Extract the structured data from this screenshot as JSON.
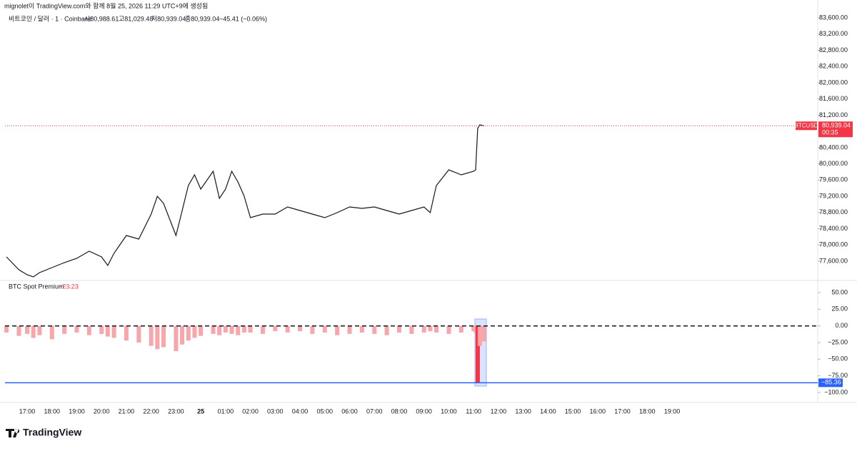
{
  "header": {
    "credit": "mignolet이 TradingView.com와 함께 8월 25, 2026 11:29 UTC+9에 생성됨",
    "symbol": "비트코인 / 달러 · 1 · Coinbase",
    "open": "시80,988.61",
    "high": "고81,029.48",
    "low": "저80,939.04",
    "close": "종80,939.04",
    "change": "−45.41 (−0.06%)",
    "logo": "TradingView"
  },
  "time_axis": {
    "labels": [
      "17:00",
      "18:00",
      "19:00",
      "20:00",
      "21:00",
      "22:00",
      "23:00",
      "25",
      "01:00",
      "02:00",
      "03:00",
      "04:00",
      "05:00",
      "06:00",
      "07:00",
      "08:00",
      "09:00",
      "10:00",
      "11:00",
      "12:00",
      "13:00",
      "14:00",
      "15:00",
      "16:00",
      "17:00",
      "18:00",
      "19:00"
    ]
  },
  "chart_data": [
    {
      "type": "line",
      "x": [
        "16:10",
        "16:40",
        "17:00",
        "17:15",
        "17:30",
        "18:00",
        "18:30",
        "19:00",
        "19:30",
        "20:00",
        "20:15",
        "20:30",
        "21:00",
        "21:30",
        "22:00",
        "22:15",
        "22:30",
        "23:00",
        "23:15",
        "23:30",
        "23:45",
        "00:00",
        "00:30",
        "00:45",
        "01:00",
        "01:15",
        "01:30",
        "01:45",
        "02:00",
        "02:30",
        "03:00",
        "03:30",
        "04:00",
        "04:30",
        "05:00",
        "05:30",
        "06:00",
        "06:30",
        "07:00",
        "07:30",
        "08:00",
        "08:30",
        "09:00",
        "09:15",
        "09:30",
        "10:00",
        "10:30",
        "11:00",
        "11:05",
        "11:10",
        "11:15",
        "11:25"
      ],
      "series": [
        {
          "name": "BTCUSD",
          "color": "#131722",
          "values": [
            77706,
            77389,
            77266,
            77213,
            77318,
            77442,
            77565,
            77670,
            77846,
            77706,
            77494,
            77794,
            78234,
            78146,
            78762,
            79202,
            79026,
            78234,
            78850,
            79466,
            79730,
            79378,
            79818,
            79149,
            79378,
            79818,
            79554,
            79202,
            78674,
            78762,
            78762,
            78938,
            78850,
            78762,
            78674,
            78797,
            78938,
            78902,
            78938,
            78850,
            78762,
            78850,
            78938,
            78797,
            79466,
            79853,
            79730,
            79818,
            79853,
            80874,
            80962,
            80939.04
          ]
        }
      ],
      "ylim": [
        77142,
        84041
      ],
      "yticks": [
        {
          "value": 77600,
          "label": "77,600.00"
        },
        {
          "value": 78000,
          "label": "78,000.00"
        },
        {
          "value": 78400,
          "label": "78,400.00"
        },
        {
          "value": 78800,
          "label": "78,800.00"
        },
        {
          "value": 79200,
          "label": "79,200.00"
        },
        {
          "value": 79600,
          "label": "79,600.00"
        },
        {
          "value": 80000,
          "label": "80,000.00"
        },
        {
          "value": 80400,
          "label": "80,400.00"
        },
        {
          "value": 80800,
          "label": "80,800.00"
        },
        {
          "value": 81200,
          "label": "81,200.00"
        },
        {
          "value": 81600,
          "label": "81,600.00"
        },
        {
          "value": 82000,
          "label": "82,000.00"
        },
        {
          "value": 82400,
          "label": "82,400.00"
        },
        {
          "value": 82800,
          "label": "82,800.00"
        },
        {
          "value": 83200,
          "label": "83,200.00"
        },
        {
          "value": 83600,
          "label": "83,600.00"
        }
      ],
      "last_price": {
        "value": 80939.04,
        "label": "80,939.04"
      },
      "countdown": "00:35",
      "last_color": "#f23645"
    },
    {
      "type": "bar",
      "title": "BTC Spot Premium",
      "current": "−23.23",
      "x": [
        "16:10",
        "16:40",
        "17:00",
        "17:15",
        "17:30",
        "18:00",
        "18:30",
        "19:00",
        "19:30",
        "20:00",
        "20:15",
        "20:30",
        "21:00",
        "21:30",
        "22:00",
        "22:15",
        "22:30",
        "23:00",
        "23:15",
        "23:30",
        "23:45",
        "00:00",
        "00:30",
        "00:45",
        "01:00",
        "01:15",
        "01:30",
        "01:45",
        "02:00",
        "02:30",
        "03:00",
        "03:30",
        "04:00",
        "04:30",
        "05:00",
        "05:30",
        "06:00",
        "06:30",
        "07:00",
        "07:30",
        "08:00",
        "08:30",
        "09:00",
        "09:15",
        "09:30",
        "10:00",
        "10:30",
        "11:00",
        "11:05",
        "11:10",
        "11:15",
        "11:25"
      ],
      "series": [
        {
          "name": "BTC Spot Premium",
          "color": "#f7a6ab",
          "values": [
            -10,
            -15,
            -12,
            -18,
            -14,
            -20,
            -12,
            -10,
            -14,
            -12,
            -16,
            -18,
            -22,
            -25,
            -30,
            -35,
            -32,
            -38,
            -28,
            -22,
            -18,
            -15,
            -12,
            -14,
            -10,
            -12,
            -14,
            -10,
            -10,
            -12,
            -8,
            -10,
            -8,
            -12,
            -10,
            -14,
            -12,
            -10,
            -12,
            -14,
            -10,
            -12,
            -10,
            -8,
            -10,
            -12,
            -10,
            -8,
            -10,
            -85,
            -30,
            -23.23
          ]
        }
      ],
      "ylim": [
        -110.7,
        66.1
      ],
      "yticks": [
        {
          "value": 50,
          "label": "50.00"
        },
        {
          "value": 25,
          "label": "25.00"
        },
        {
          "value": 0,
          "label": "0.00"
        },
        {
          "value": -25,
          "label": "−25.00"
        },
        {
          "value": -50,
          "label": "−50.00"
        },
        {
          "value": -75,
          "label": "−75.00"
        },
        {
          "value": -100,
          "label": "−100.00"
        }
      ],
      "level": {
        "value": -85.36,
        "label": "−85.36"
      },
      "level_color": "#2962ff"
    }
  ]
}
